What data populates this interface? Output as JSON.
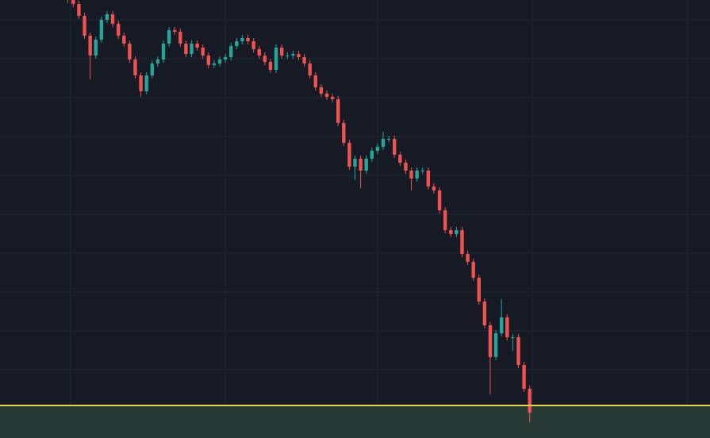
{
  "chart_data": {
    "type": "candlestick",
    "open": [
      557,
      552,
      547,
      532,
      507,
      482,
      502,
      527,
      534,
      522,
      507,
      497,
      477,
      457,
      437,
      457,
      472,
      477,
      497,
      514,
      512,
      497,
      484,
      497,
      492,
      482,
      470,
      472,
      477,
      480,
      494,
      500,
      504,
      500,
      490,
      482,
      474,
      464,
      492,
      482,
      482,
      484,
      480,
      472,
      457,
      442,
      434,
      430,
      427,
      397,
      372,
      342,
      352,
      337,
      352,
      362,
      367,
      377,
      377,
      357,
      347,
      337,
      327,
      337,
      337,
      317,
      312,
      287,
      262,
      257,
      262,
      232,
      222,
      202,
      172,
      142,
      102,
      132,
      152,
      127,
      127,
      92,
      62
    ],
    "high": [
      561,
      556,
      551,
      536,
      511,
      506,
      531,
      538,
      538,
      526,
      511,
      501,
      481,
      461,
      461,
      476,
      481,
      501,
      518,
      518,
      516,
      501,
      501,
      501,
      496,
      486,
      476,
      481,
      484,
      498,
      504,
      508,
      508,
      504,
      494,
      486,
      478,
      496,
      496,
      486,
      488,
      488,
      484,
      476,
      461,
      446,
      438,
      434,
      431,
      401,
      376,
      356,
      356,
      356,
      366,
      371,
      386,
      381,
      381,
      361,
      351,
      341,
      341,
      341,
      341,
      321,
      316,
      291,
      266,
      266,
      266,
      236,
      226,
      206,
      176,
      146,
      136,
      175,
      156,
      131,
      131,
      96,
      66
    ],
    "low": [
      548,
      543,
      528,
      503,
      452,
      478,
      498,
      523,
      518,
      503,
      493,
      473,
      453,
      430,
      433,
      453,
      468,
      473,
      493,
      508,
      493,
      480,
      480,
      488,
      478,
      466,
      466,
      468,
      473,
      476,
      490,
      496,
      496,
      486,
      478,
      470,
      460,
      460,
      478,
      478,
      478,
      476,
      468,
      453,
      438,
      430,
      426,
      423,
      393,
      368,
      338,
      325,
      315,
      333,
      348,
      358,
      363,
      373,
      353,
      343,
      333,
      312,
      323,
      333,
      313,
      308,
      283,
      258,
      253,
      253,
      228,
      218,
      198,
      168,
      138,
      55,
      98,
      128,
      123,
      110,
      88,
      58,
      20
    ],
    "close": [
      552,
      547,
      532,
      507,
      482,
      502,
      527,
      534,
      522,
      507,
      497,
      477,
      457,
      437,
      457,
      472,
      477,
      497,
      514,
      512,
      497,
      484,
      497,
      492,
      482,
      470,
      472,
      477,
      480,
      494,
      500,
      504,
      500,
      490,
      482,
      474,
      464,
      492,
      482,
      482,
      484,
      480,
      472,
      457,
      442,
      434,
      430,
      427,
      397,
      372,
      342,
      352,
      337,
      352,
      362,
      367,
      377,
      377,
      357,
      347,
      337,
      327,
      337,
      337,
      317,
      312,
      287,
      262,
      257,
      262,
      232,
      222,
      202,
      172,
      142,
      102,
      132,
      152,
      127,
      127,
      92,
      62,
      32
    ],
    "xlim": [
      -12,
      114
    ],
    "xticks": [
      0.5,
      28,
      55,
      82.5,
      110
    ],
    "ylim": [
      0,
      552
    ],
    "yticks": [
      86,
      135,
      184,
      233,
      282,
      331,
      380,
      429,
      478,
      527
    ],
    "grid": true,
    "up_color": "#26a69a",
    "down_color": "#ef5350",
    "level": 41,
    "level_color": "#e8d44d",
    "zone_color": "#273a35",
    "background": "#161a25",
    "grid_color": "#232835"
  }
}
